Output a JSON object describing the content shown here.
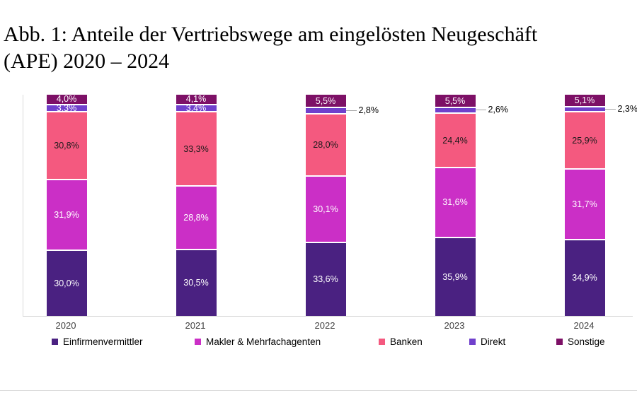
{
  "title": {
    "lines": [
      "Abb. 1: Anteile der Vertriebswege am eingelösten Neugeschäft",
      "(APE) 2020 – 2024"
    ],
    "full": "Abb. 1: Anteile der Vertriebswege am eingelösten Neugeschäft (APE) 2020 – 2024"
  },
  "chart_data": {
    "type": "bar",
    "stacked": true,
    "title": "Abb. 1: Anteile der Vertriebswege am eingelösten Neugeschäft (APE) 2020 – 2024",
    "categories": [
      "2020",
      "2021",
      "2022",
      "2023",
      "2024"
    ],
    "series": [
      {
        "name": "Einfirmenvermittler",
        "color": "#4A2181",
        "label_color": "#FFFFFF",
        "values": [
          30.0,
          30.5,
          33.6,
          35.9,
          34.9
        ]
      },
      {
        "name": "Makler & Mehrfachagenten",
        "color": "#CB2FC6",
        "label_color": "#FFFFFF",
        "values": [
          31.9,
          28.8,
          30.1,
          31.6,
          31.7
        ]
      },
      {
        "name": "Banken",
        "color": "#F4597F",
        "label_color": "#1A1A1A",
        "values": [
          30.8,
          33.3,
          28.0,
          24.4,
          25.9
        ]
      },
      {
        "name": "Direkt",
        "color": "#7040CC",
        "label_color": "#FFFFFF",
        "values": [
          3.3,
          3.4,
          2.8,
          2.6,
          2.3
        ],
        "outside_labels": [
          false,
          false,
          true,
          true,
          true
        ]
      },
      {
        "name": "Sonstige",
        "color": "#7D1066",
        "label_color": "#FFFFFF",
        "values": [
          4.0,
          4.1,
          5.5,
          5.5,
          5.1
        ]
      }
    ],
    "value_format": "percent-decimal-comma",
    "ylim": [
      0,
      100
    ],
    "grid": false,
    "legend_position": "bottom",
    "axis_color": "#D9D9D9",
    "leader_line_color": "#A6A6A6"
  }
}
